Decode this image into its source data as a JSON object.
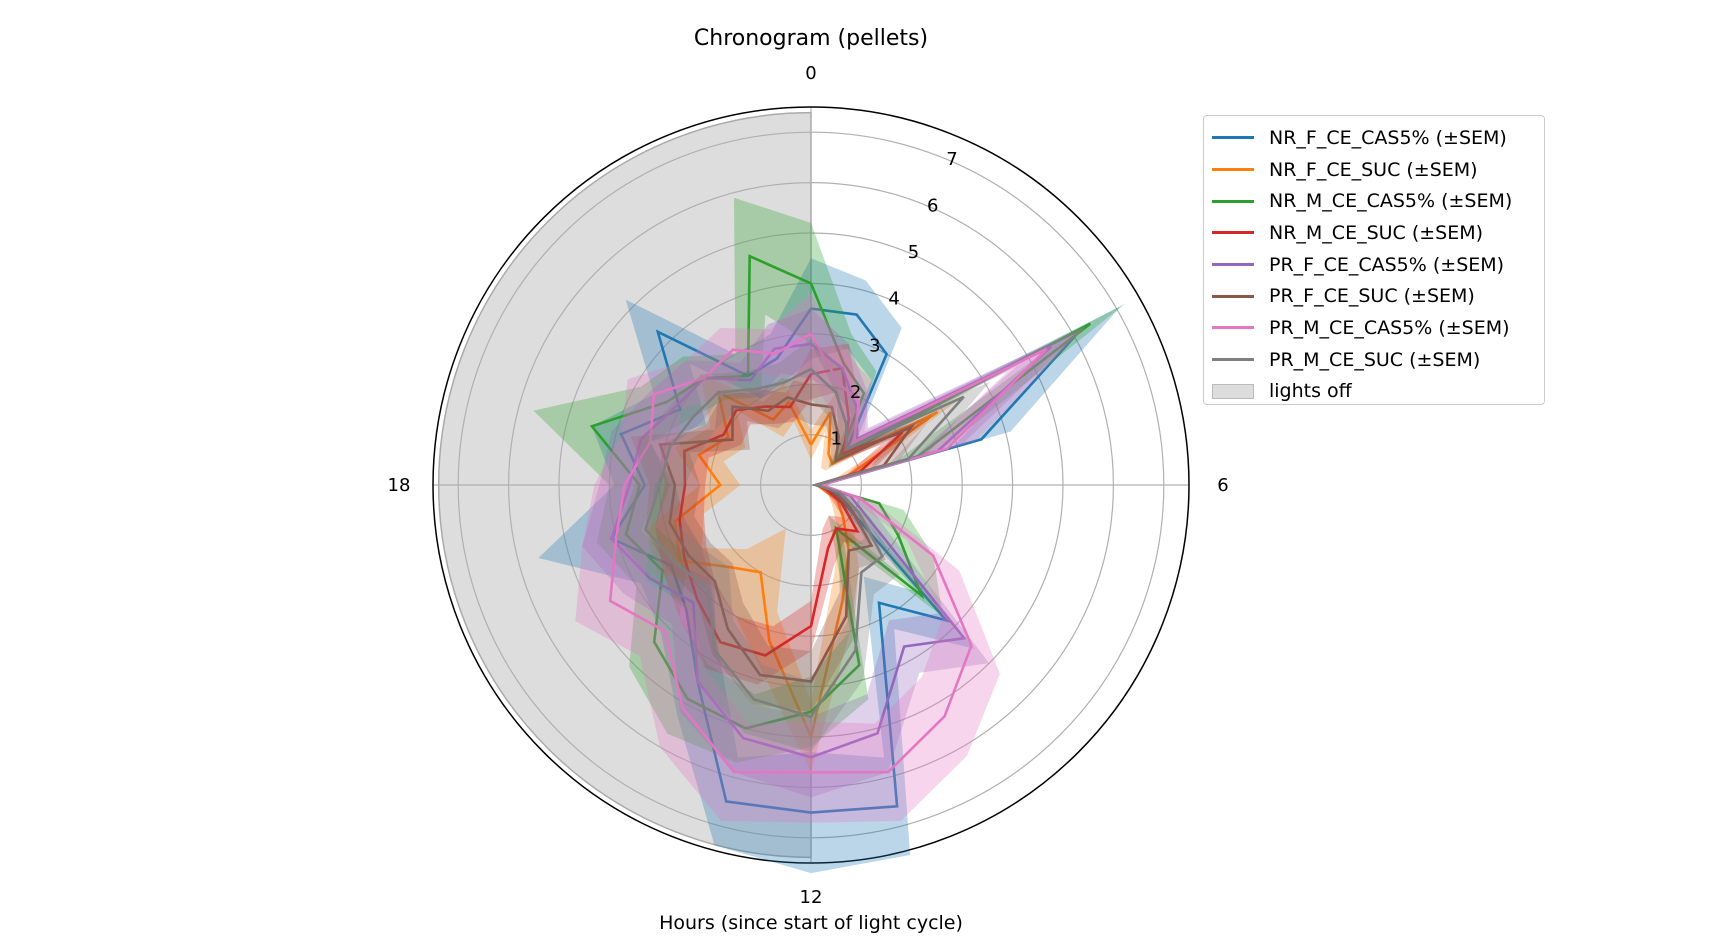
{
  "chart_data": {
    "type": "polar-line",
    "title": "Chronogram (pellets)",
    "xlabel": "Hours (since start of light cycle)",
    "angle_ticks": [
      "0",
      "6",
      "12",
      "18"
    ],
    "radial_ticks": [
      "1",
      "2",
      "3",
      "4",
      "5",
      "6",
      "7"
    ],
    "rlim": [
      0,
      7.5
    ],
    "hours": [
      0,
      1,
      2,
      3,
      4,
      5,
      6,
      7,
      8,
      9,
      10,
      11,
      12,
      13,
      14,
      15,
      16,
      17,
      18,
      19,
      20,
      21,
      22,
      23
    ],
    "shaded_region": {
      "label": "lights off",
      "start_hour": 12,
      "end_hour": 24,
      "color": "#dddddd"
    },
    "series": [
      {
        "name": "NR_F_CE_CAS5% (±SEM)",
        "color": "#1f77b4",
        "values": [
          3.5,
          3.5,
          3.0,
          1.0,
          6.2,
          3.5,
          0.2,
          0.4,
          0.8,
          3.8,
          2.7,
          6.6,
          6.5,
          6.5,
          4.5,
          3.5,
          3.2,
          4.1,
          3.3,
          3.9,
          3.0,
          4.3,
          2.5,
          2.6
        ],
        "sem": [
          1.0,
          0.7,
          0.6,
          0.3,
          0.9,
          0.6,
          0.1,
          0.2,
          0.3,
          0.8,
          0.6,
          1.0,
          1.2,
          0.9,
          0.8,
          0.7,
          0.7,
          1.5,
          0.6,
          0.6,
          0.6,
          0.9,
          0.5,
          0.5
        ]
      },
      {
        "name": "NR_F_CE_SUC (±SEM)",
        "color": "#ff7f0e",
        "values": [
          0.8,
          1.5,
          0.7,
          0.6,
          2.9,
          0.8,
          0.2,
          0.2,
          0.6,
          0.9,
          1.5,
          2.4,
          5.0,
          3.2,
          2.0,
          2.3,
          3.0,
          2.8,
          1.8,
          2.3,
          1.9,
          2.6,
          1.5,
          1.7
        ],
        "sem": [
          0.3,
          0.4,
          0.3,
          0.2,
          0.5,
          0.3,
          0.1,
          0.1,
          0.2,
          0.3,
          0.4,
          0.6,
          0.7,
          0.6,
          1.0,
          0.5,
          0.5,
          0.6,
          0.4,
          0.5,
          0.4,
          0.5,
          0.4,
          0.4
        ]
      },
      {
        "name": "NR_M_CE_CAS5% (±SEM)",
        "color": "#2ca02c",
        "values": [
          4.0,
          2.5,
          2.1,
          0.8,
          6.4,
          2.2,
          0.1,
          1.4,
          2.0,
          3.1,
          1.0,
          3.7,
          4.5,
          5.0,
          4.9,
          4.4,
          3.4,
          3.8,
          3.4,
          4.5,
          3.3,
          3.0,
          2.5,
          4.7
        ],
        "sem": [
          1.2,
          0.6,
          0.5,
          0.3,
          0.8,
          0.5,
          0.1,
          0.5,
          0.8,
          0.6,
          0.3,
          0.7,
          0.7,
          0.7,
          0.8,
          0.7,
          0.6,
          0.6,
          0.6,
          1.2,
          0.6,
          0.6,
          0.5,
          1.2
        ]
      },
      {
        "name": "NR_M_CE_SUC (±SEM)",
        "color": "#d62728",
        "values": [
          2.2,
          2.4,
          1.5,
          0.9,
          2.1,
          1.0,
          0.1,
          0.3,
          0.7,
          1.3,
          1.0,
          1.3,
          2.8,
          3.5,
          3.6,
          3.2,
          2.9,
          2.7,
          2.5,
          2.6,
          2.0,
          2.1,
          1.8,
          1.6
        ],
        "sem": [
          0.5,
          0.5,
          0.4,
          0.3,
          0.5,
          0.3,
          0.1,
          0.1,
          0.3,
          0.4,
          0.3,
          0.4,
          0.5,
          0.6,
          0.6,
          0.5,
          0.5,
          0.5,
          0.4,
          0.5,
          0.4,
          0.4,
          0.4,
          0.3
        ]
      },
      {
        "name": "PR_F_CE_CAS5% (±SEM)",
        "color": "#9467bd",
        "values": [
          2.8,
          2.4,
          1.8,
          1.3,
          5.5,
          2.6,
          0.2,
          0.8,
          1.3,
          4.3,
          3.7,
          5.1,
          5.4,
          5.2,
          4.5,
          3.3,
          3.7,
          4.1,
          3.6,
          3.5,
          3.1,
          3.0,
          2.4,
          2.8
        ],
        "sem": [
          0.7,
          0.5,
          0.4,
          0.3,
          0.8,
          0.5,
          0.1,
          0.3,
          0.4,
          0.7,
          0.6,
          0.8,
          0.8,
          0.7,
          0.7,
          0.6,
          0.6,
          0.6,
          0.6,
          0.6,
          0.6,
          0.5,
          0.4,
          0.5
        ]
      },
      {
        "name": "PR_F_CE_SUC (±SEM)",
        "color": "#8c564b",
        "values": [
          1.6,
          1.6,
          1.1,
          0.7,
          2.3,
          1.5,
          0.1,
          0.5,
          0.9,
          1.7,
          1.5,
          2.7,
          3.9,
          3.9,
          3.3,
          2.7,
          2.8,
          2.9,
          2.7,
          3.1,
          1.8,
          2.2,
          1.7,
          1.8
        ],
        "sem": [
          0.4,
          0.4,
          0.3,
          0.2,
          0.5,
          0.3,
          0.1,
          0.2,
          0.3,
          0.4,
          0.4,
          0.5,
          0.6,
          0.6,
          0.6,
          0.5,
          0.5,
          0.5,
          0.5,
          0.6,
          0.4,
          0.4,
          0.4,
          0.4
        ]
      },
      {
        "name": "PR_M_CE_CAS5% (±SEM)",
        "color": "#e377c2",
        "values": [
          3.0,
          2.1,
          1.9,
          1.2,
          5.4,
          2.8,
          0.2,
          1.0,
          2.8,
          4.5,
          5.3,
          5.9,
          5.7,
          5.9,
          5.1,
          4.1,
          4.6,
          4.0,
          3.7,
          3.3,
          3.6,
          3.0,
          3.1,
          2.7
        ],
        "sem": [
          0.8,
          0.6,
          0.5,
          0.3,
          0.9,
          0.6,
          0.1,
          0.3,
          0.6,
          0.8,
          0.9,
          1.0,
          1.0,
          1.0,
          0.9,
          0.7,
          0.8,
          0.7,
          0.6,
          0.6,
          0.6,
          0.5,
          0.5,
          0.5
        ]
      },
      {
        "name": "PR_M_CE_SUC (±SEM)",
        "color": "#7f7f7f",
        "values": [
          2.3,
          1.9,
          1.4,
          1.0,
          3.5,
          2.0,
          0.1,
          0.6,
          1.1,
          2.0,
          2.0,
          3.4,
          4.6,
          4.4,
          3.8,
          2.9,
          3.1,
          3.4,
          3.0,
          2.9,
          2.7,
          2.6,
          2.2,
          2.1
        ],
        "sem": [
          0.6,
          0.5,
          0.4,
          0.3,
          0.6,
          0.4,
          0.1,
          0.2,
          0.3,
          0.5,
          0.5,
          0.6,
          0.7,
          0.7,
          0.7,
          0.6,
          0.6,
          0.6,
          0.5,
          0.6,
          0.5,
          0.5,
          0.4,
          0.4
        ]
      }
    ]
  }
}
